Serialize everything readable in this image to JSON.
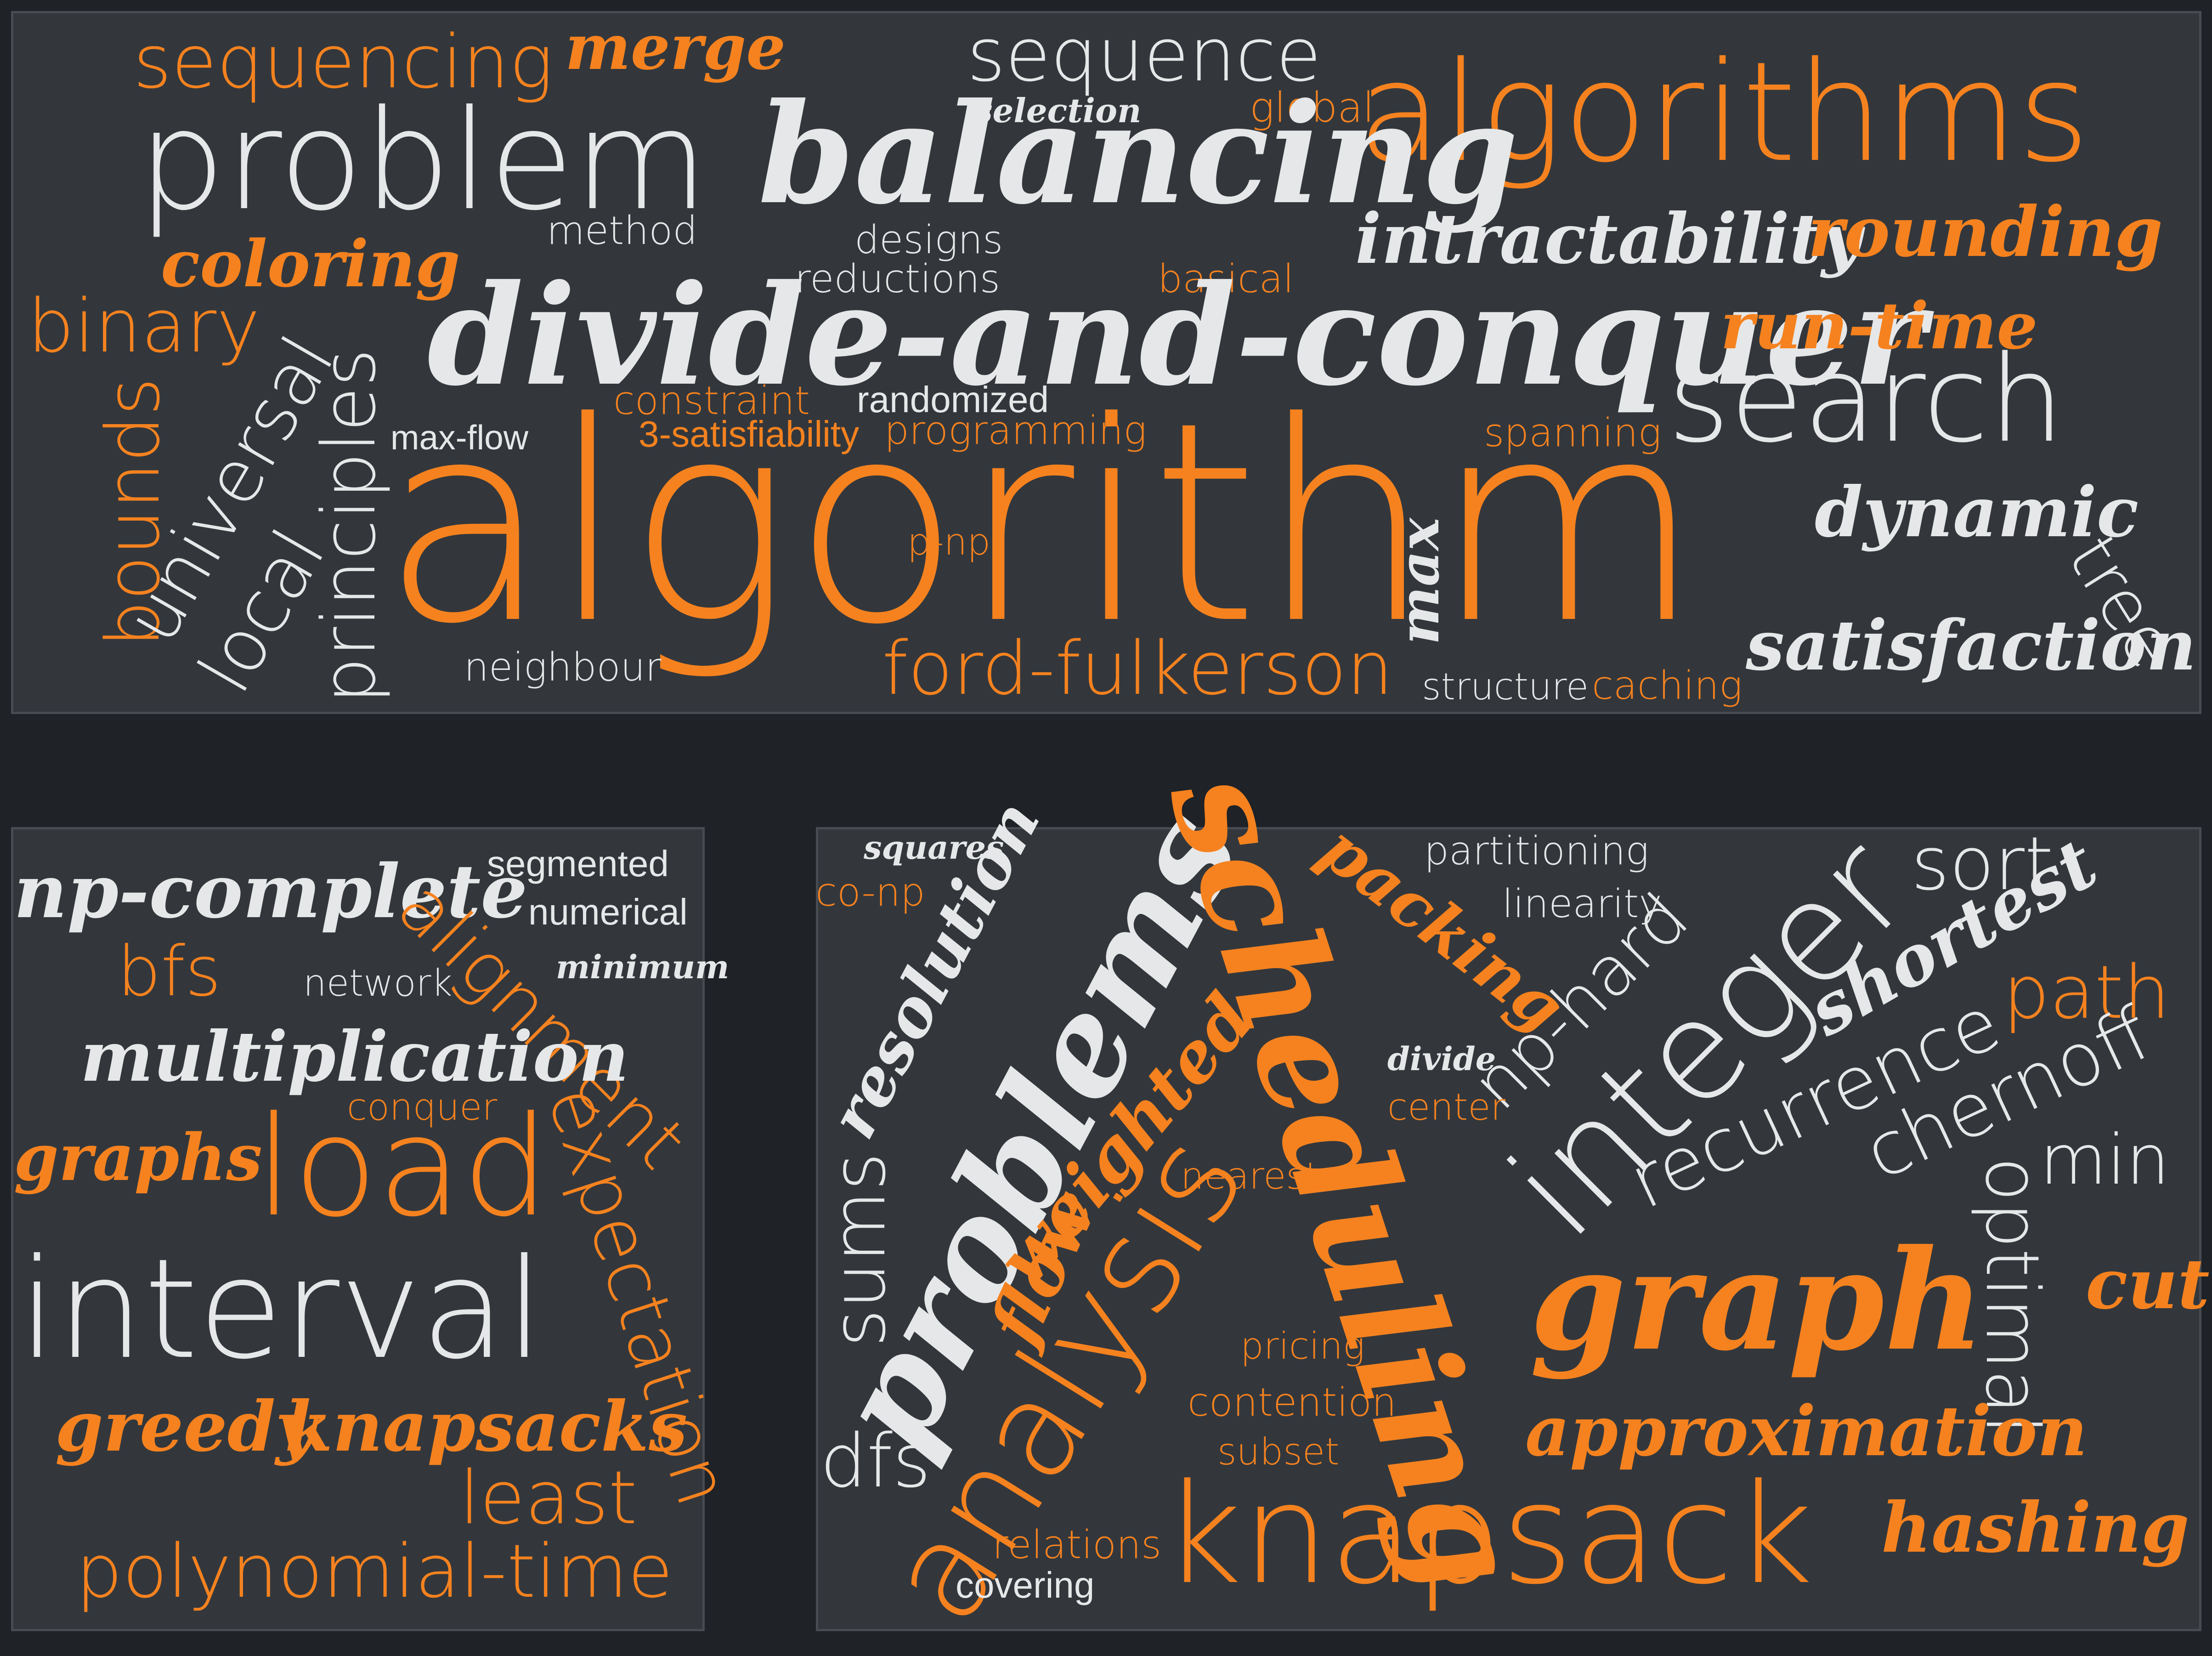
{
  "colors": {
    "background": "#1f2227",
    "panel": "#33373c",
    "orange": "#f5821f",
    "light": "#e6e7e8"
  },
  "top": {
    "sequencing": "sequencing",
    "merge": "merge",
    "sequence": "sequence",
    "selection": "selection",
    "global": "global",
    "algorithms": "algorithms",
    "problem": "problem",
    "balancing": "balancing",
    "coloring": "coloring",
    "method": "method",
    "designs": "designs",
    "reductions": "reductions",
    "basical": "basical",
    "intractability": "intractability",
    "rounding": "rounding",
    "binary": "binary",
    "divide_and_conquer": "divide-and-conquer",
    "run_time": "run-time",
    "bounds": "bounds",
    "universal": "universal",
    "local": "local",
    "principles": "principles",
    "constraint": "constraint",
    "randomized": "randomized",
    "max_flow": "max-flow",
    "three_sat": "3-satisfiability",
    "programming": "programming",
    "spanning": "spanning",
    "search": "search",
    "algorithm": "algorithm",
    "p_np": "p-np",
    "max": "max",
    "dynamic": "dynamic",
    "tree": "tree",
    "neighbour": "neighbour",
    "ford_fulkerson": "ford-fulkerson",
    "structure": "structure",
    "caching": "caching",
    "satisfaction": "satisfaction"
  },
  "left": {
    "np_complete": "np-complete",
    "alignment": "alignment",
    "segmented": "segmented",
    "numerical": "numerical",
    "bfs": "bfs",
    "network": "network",
    "minimum": "minimum",
    "multiplication": "multiplication",
    "conquer": "conquer",
    "graphs": "graphs",
    "load": "load",
    "expectation": "expectation",
    "interval": "interval",
    "greedy": "greedy",
    "knapsacks": "knapsacks",
    "least": "least",
    "polynomial_time": "polynomial-time"
  },
  "right": {
    "squares": "squares",
    "co_np": "co-np",
    "resolution": "resolution",
    "problems": "problems",
    "scheduling": "scheduling",
    "packing": "packing",
    "partitioning": "partitioning",
    "linearity": "linearity",
    "np_hard": "np-hard",
    "integer": "integer",
    "sort": "sort",
    "shortest": "shortest",
    "path": "path",
    "recurrence": "recurrence",
    "chernoff": "chernoff",
    "min": "min",
    "weighted": "weighted",
    "divide": "divide",
    "center": "center",
    "nearest": "nearest",
    "sums": "sums",
    "flow": "flow",
    "analysis": "analysis",
    "optimal": "optimal",
    "graph": "graph",
    "cut": "cut",
    "pricing": "pricing",
    "contention": "contention",
    "subset": "subset",
    "approximation": "approximation",
    "dfs": "dfs",
    "knapsack": "knapsack",
    "hashing": "hashing",
    "relations": "relations",
    "covering": "covering"
  }
}
